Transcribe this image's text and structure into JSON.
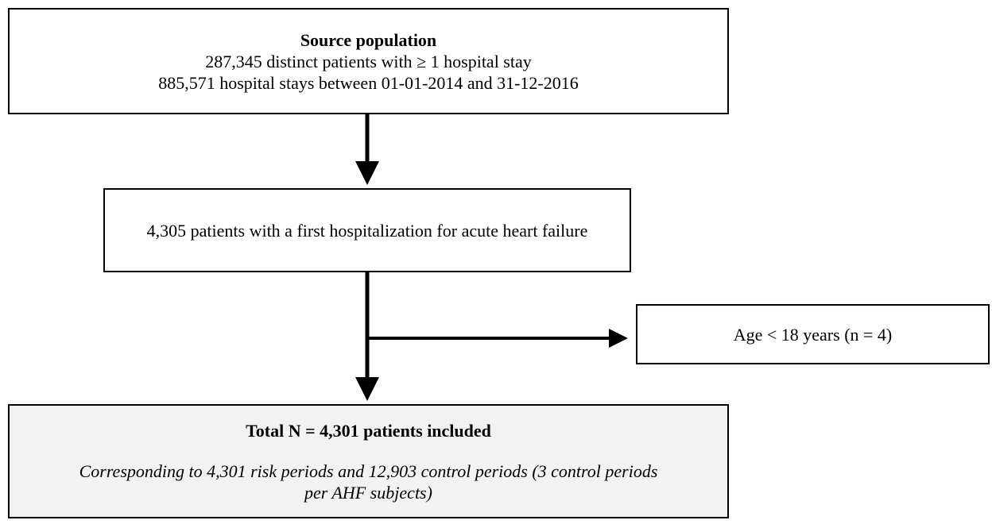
{
  "nodes": [
    {
      "title": "Source population",
      "lines": [
        "287,345 distinct patients with ≥ 1 hospital stay",
        "885,571 hospital stays between 01-01-2014 and 31-12-2016"
      ]
    },
    {
      "text": "4,305 patients with a first hospitalization for acute heart failure"
    },
    {
      "text": "Age < 18 years (n = 4)"
    },
    {
      "title": "Total N = 4,301 patients included",
      "note": "Corresponding to 4,301 risk periods and 12,903 control periods (3 control periods per AHF subjects)"
    }
  ]
}
